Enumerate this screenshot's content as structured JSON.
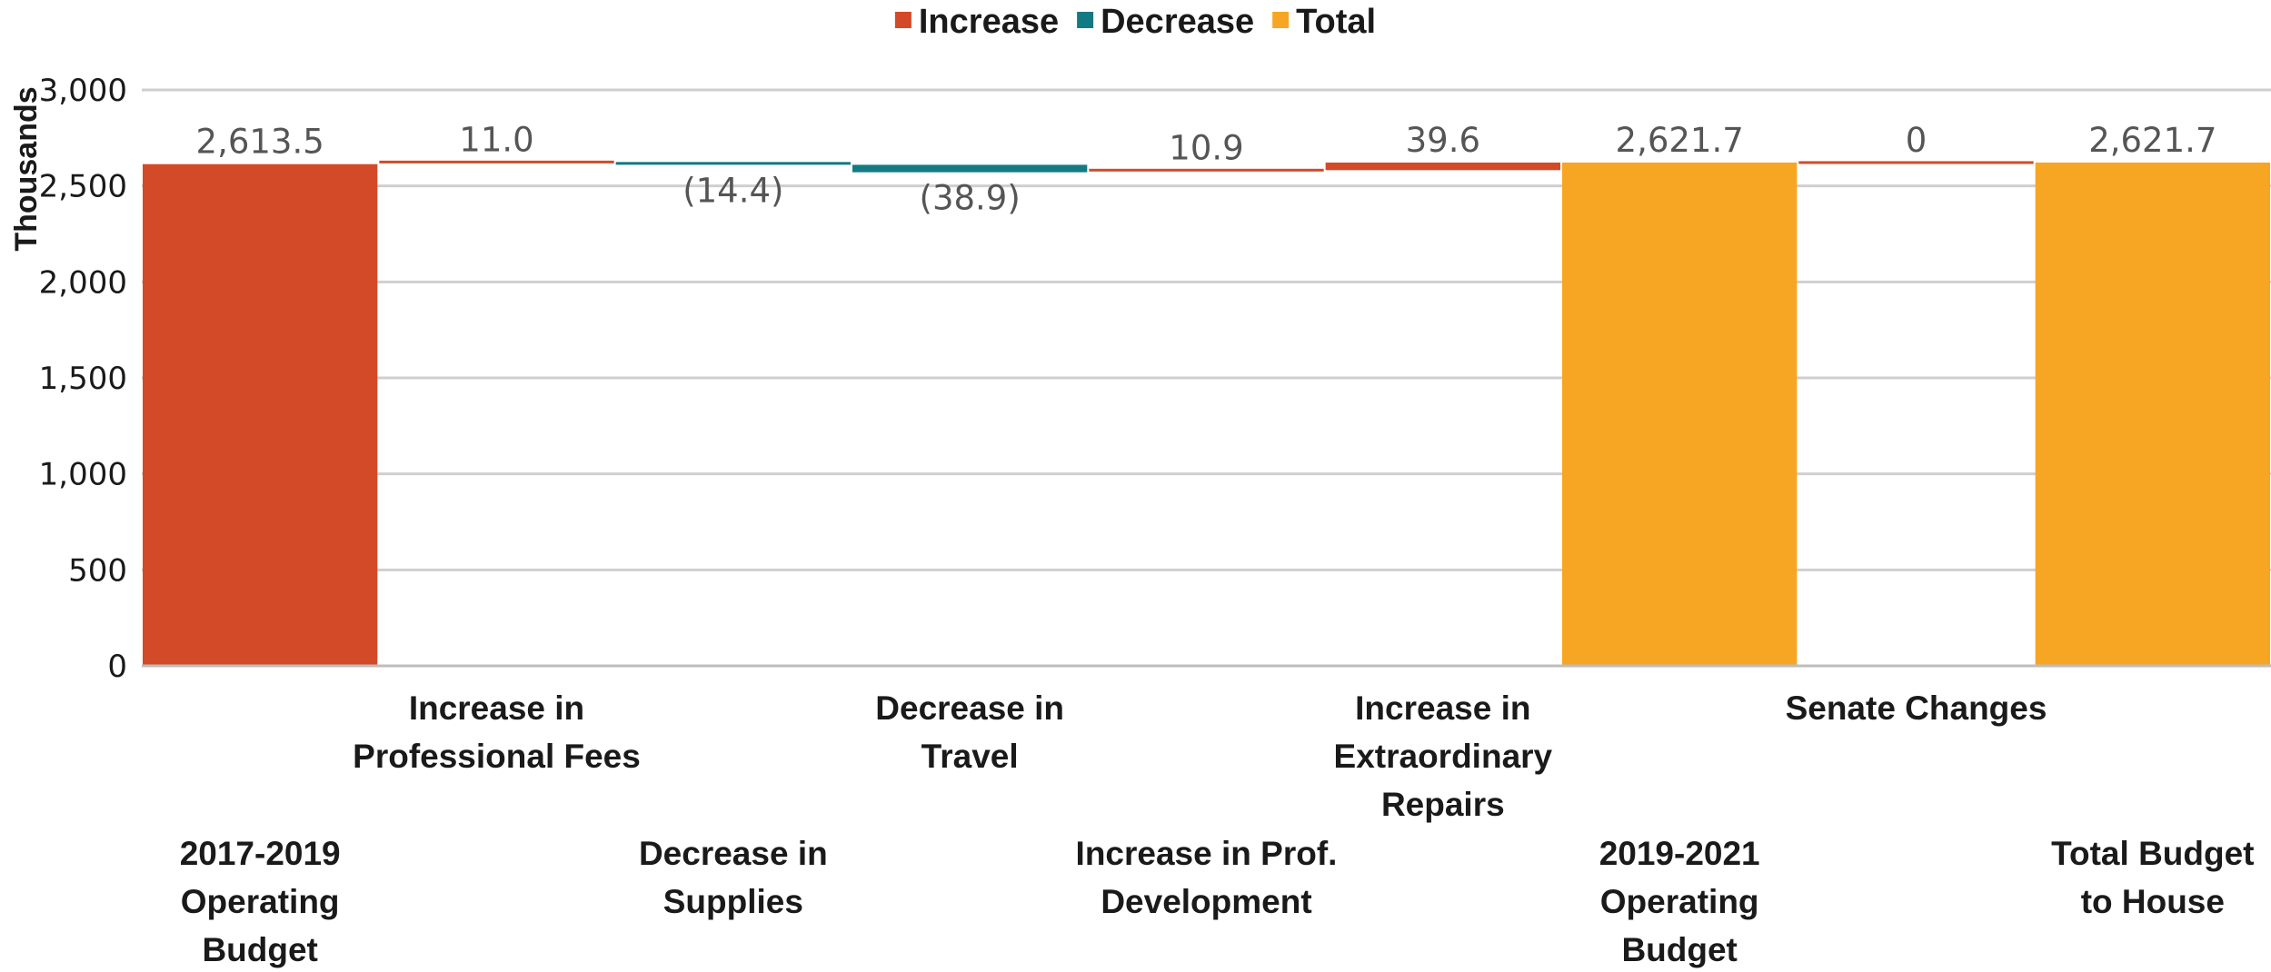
{
  "chart_data": {
    "type": "bar",
    "subtype": "waterfall",
    "title": "",
    "xlabel": "",
    "ylabel": "Thousands",
    "ylim": [
      0,
      3000
    ],
    "yticks": [
      0,
      500,
      1000,
      1500,
      2000,
      2500,
      3000
    ],
    "ytick_labels": [
      "0",
      "500",
      "1,000",
      "1,500",
      "2,000",
      "2,500",
      "3,000"
    ],
    "grid": true,
    "legend": {
      "placement": "top-center",
      "entries": [
        {
          "name": "Increase",
          "color": "#d24a28"
        },
        {
          "name": "Decrease",
          "color": "#137a82"
        },
        {
          "name": "Total",
          "color": "#f6a623"
        }
      ]
    },
    "colors": {
      "increase": "#d24a28",
      "decrease": "#137a82",
      "total": "#f6a623"
    },
    "categories": [
      {
        "label": [
          "2017-2019",
          "Operating",
          "Budget"
        ],
        "kind": "increase",
        "value": 2613.5,
        "base": 0,
        "value_label": "2,613.5"
      },
      {
        "label": [
          "Increase in",
          "Professional Fees"
        ],
        "kind": "increase",
        "value": 11.0,
        "base": 2613.5,
        "value_label": "11.0"
      },
      {
        "label": [
          "Decrease in",
          "Supplies"
        ],
        "kind": "decrease",
        "value": -14.4,
        "base": 2624.5,
        "value_label": "(14.4)"
      },
      {
        "label": [
          "Decrease in",
          "Travel"
        ],
        "kind": "decrease",
        "value": -38.9,
        "base": 2610.1,
        "value_label": "(38.9)"
      },
      {
        "label": [
          "Increase in Prof.",
          "Development"
        ],
        "kind": "increase",
        "value": 10.9,
        "base": 2571.2,
        "value_label": "10.9"
      },
      {
        "label": [
          "Increase in",
          "Extraordinary",
          "Repairs"
        ],
        "kind": "increase",
        "value": 39.6,
        "base": 2582.1,
        "value_label": "39.6"
      },
      {
        "label": [
          "2019-2021",
          "Operating",
          "Budget"
        ],
        "kind": "total",
        "value": 2621.7,
        "base": 0,
        "value_label": "2,621.7"
      },
      {
        "label": [
          "Senate Changes"
        ],
        "kind": "increase",
        "value": 0,
        "base": 2621.7,
        "value_label": "0"
      },
      {
        "label": [
          "Total Budget",
          "to House"
        ],
        "kind": "total",
        "value": 2621.7,
        "base": 0,
        "value_label": "2,621.7"
      }
    ]
  }
}
